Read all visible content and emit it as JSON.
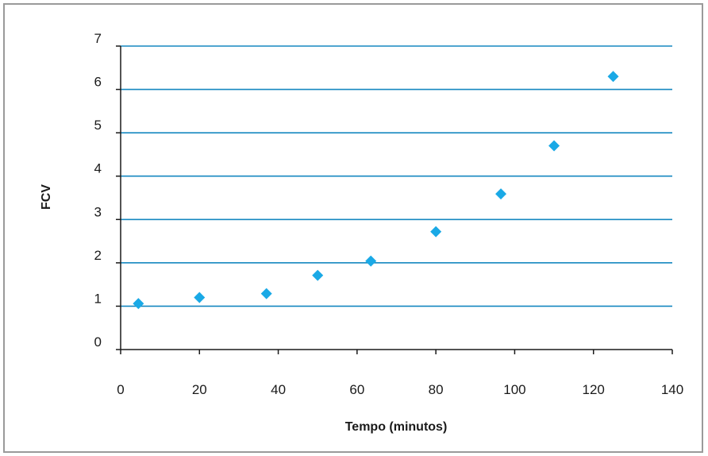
{
  "chart_data": {
    "type": "scatter",
    "title": "",
    "xlabel": "Tempo (minutos)",
    "ylabel": "FCV",
    "xlim": [
      0,
      140
    ],
    "ylim": [
      0,
      7
    ],
    "x_ticks": [
      "0",
      "20",
      "40",
      "60",
      "80",
      "100",
      "120",
      "140"
    ],
    "y_ticks": [
      "0",
      "1",
      "2",
      "3",
      "4",
      "5",
      "6",
      "7"
    ],
    "grid": "horizontal",
    "legend": "none",
    "series": [
      {
        "marker": "diamond",
        "color": "#1aa9e6",
        "points": [
          {
            "x": 4.5,
            "y": 1.06
          },
          {
            "x": 20,
            "y": 1.2
          },
          {
            "x": 37,
            "y": 1.29
          },
          {
            "x": 50,
            "y": 1.71
          },
          {
            "x": 63.5,
            "y": 2.04
          },
          {
            "x": 80,
            "y": 2.72
          },
          {
            "x": 96.5,
            "y": 3.59
          },
          {
            "x": 110,
            "y": 4.7
          },
          {
            "x": 125,
            "y": 6.3
          }
        ]
      }
    ],
    "colors": {
      "grid": "#1688c0",
      "axis": "#1a1a1a",
      "border": "#9a9a9a"
    }
  }
}
